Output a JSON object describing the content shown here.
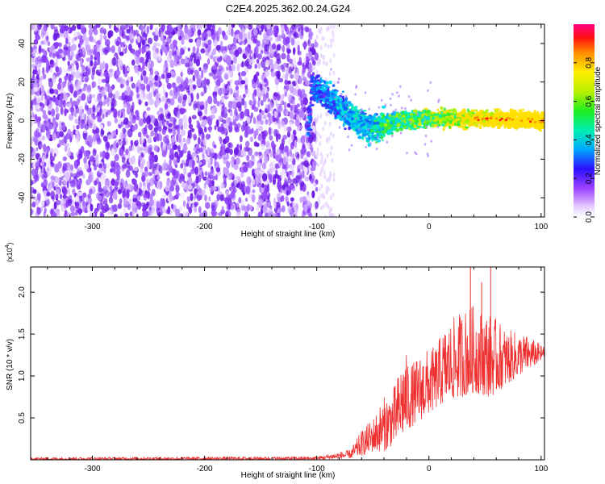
{
  "title": "C2E4.2025.362.00.24.G24",
  "chart_data": [
    {
      "type": "heatmap",
      "xlabel": "Height of straight line (km)",
      "ylabel": "Frequency (Hz)",
      "xlim": [
        -355,
        103
      ],
      "ylim": [
        -50,
        50
      ],
      "xticks": [
        -300,
        -200,
        -100,
        0,
        100
      ],
      "xtick_labels": [
        "-300",
        "-200",
        "-100",
        "0",
        "100"
      ],
      "yticks": [
        -40,
        -20,
        0,
        20,
        40
      ],
      "ytick_labels": [
        "-40",
        "-20",
        "0",
        "20",
        "40"
      ],
      "noise_region_x": [
        -355,
        -100
      ],
      "signal_track": [
        {
          "x": -105,
          "y": 18
        },
        {
          "x": -95,
          "y": 14
        },
        {
          "x": -85,
          "y": 10
        },
        {
          "x": -75,
          "y": 4
        },
        {
          "x": -60,
          "y": -2
        },
        {
          "x": -50,
          "y": -5
        },
        {
          "x": -40,
          "y": -2
        },
        {
          "x": -25,
          "y": 0
        },
        {
          "x": 0,
          "y": 1
        },
        {
          "x": 50,
          "y": 1
        },
        {
          "x": 100,
          "y": 0
        }
      ],
      "colorbar": {
        "label": "Normalized spectral amplitude",
        "range": [
          0.0,
          1.0
        ],
        "ticks": [
          0.0,
          0.2,
          0.4,
          0.6,
          0.8
        ],
        "tick_labels": [
          "0.0",
          "0.2",
          "0.4",
          "0.6",
          "0.8"
        ]
      }
    },
    {
      "type": "line",
      "xlabel": "Height of straight line (km)",
      "ylabel": "SNR (10 * v/v)",
      "yscale_label": "(x10",
      "yscale_exp": "4",
      "yscale_close": ")",
      "xlim": [
        -355,
        103
      ],
      "ylim": [
        0,
        2.3
      ],
      "xticks": [
        -300,
        -200,
        -100,
        0,
        100
      ],
      "xtick_labels": [
        "-300",
        "-200",
        "-100",
        "0",
        "100"
      ],
      "yticks": [
        0.5,
        1.0,
        1.5,
        2.0
      ],
      "ytick_labels": [
        "0.5",
        "1.0",
        "1.5",
        "2.0"
      ],
      "series_color": "#ee3030",
      "envelope": [
        {
          "x": -355,
          "lo": 0.0,
          "hi": 0.03
        },
        {
          "x": -100,
          "lo": 0.0,
          "hi": 0.04
        },
        {
          "x": -85,
          "lo": 0.01,
          "hi": 0.08
        },
        {
          "x": -70,
          "lo": 0.02,
          "hi": 0.12
        },
        {
          "x": -60,
          "lo": 0.05,
          "hi": 0.35
        },
        {
          "x": -50,
          "lo": 0.1,
          "hi": 0.5
        },
        {
          "x": -40,
          "lo": 0.1,
          "hi": 0.75
        },
        {
          "x": -30,
          "lo": 0.2,
          "hi": 0.9
        },
        {
          "x": -22,
          "lo": 0.3,
          "hi": 1.3
        },
        {
          "x": -15,
          "lo": 0.4,
          "hi": 1.15
        },
        {
          "x": -5,
          "lo": 0.5,
          "hi": 1.3
        },
        {
          "x": 5,
          "lo": 0.6,
          "hi": 1.35
        },
        {
          "x": 15,
          "lo": 0.7,
          "hi": 1.6
        },
        {
          "x": 30,
          "lo": 0.75,
          "hi": 1.8
        },
        {
          "x": 40,
          "lo": 0.8,
          "hi": 1.85
        },
        {
          "x": 55,
          "lo": 0.75,
          "hi": 1.75
        },
        {
          "x": 70,
          "lo": 0.9,
          "hi": 1.55
        },
        {
          "x": 85,
          "lo": 1.05,
          "hi": 1.5
        },
        {
          "x": 103,
          "lo": 1.2,
          "hi": 1.35
        }
      ],
      "spikes": [
        {
          "x": 37,
          "y": 2.3
        },
        {
          "x": 55,
          "y": 2.3
        },
        {
          "x": 47,
          "y": 2.12
        }
      ]
    }
  ]
}
